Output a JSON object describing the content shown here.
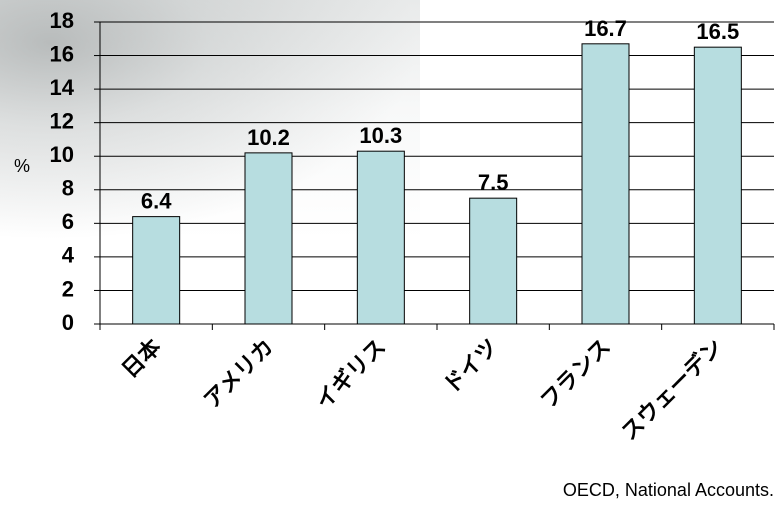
{
  "chart_data": {
    "type": "bar",
    "categories": [
      "日本",
      "アメリカ",
      "イギリス",
      "ドイツ",
      "フランス",
      "スウェーデン"
    ],
    "values": [
      6.4,
      10.2,
      10.3,
      7.5,
      16.7,
      16.5
    ],
    "data_labels": [
      "6.4",
      "10.2",
      "10.3",
      "7.5",
      "16.7",
      "16.5"
    ],
    "title": "",
    "xlabel": "",
    "ylabel": "%",
    "ylim": [
      0,
      18
    ],
    "yticks": [
      0,
      2,
      4,
      6,
      8,
      10,
      12,
      14,
      16,
      18
    ],
    "grid": true,
    "legend": "none",
    "bar_color": "#b7dde0",
    "bar_edge_color": "#000000"
  },
  "footer": {
    "source": "OECD, National Accounts."
  }
}
